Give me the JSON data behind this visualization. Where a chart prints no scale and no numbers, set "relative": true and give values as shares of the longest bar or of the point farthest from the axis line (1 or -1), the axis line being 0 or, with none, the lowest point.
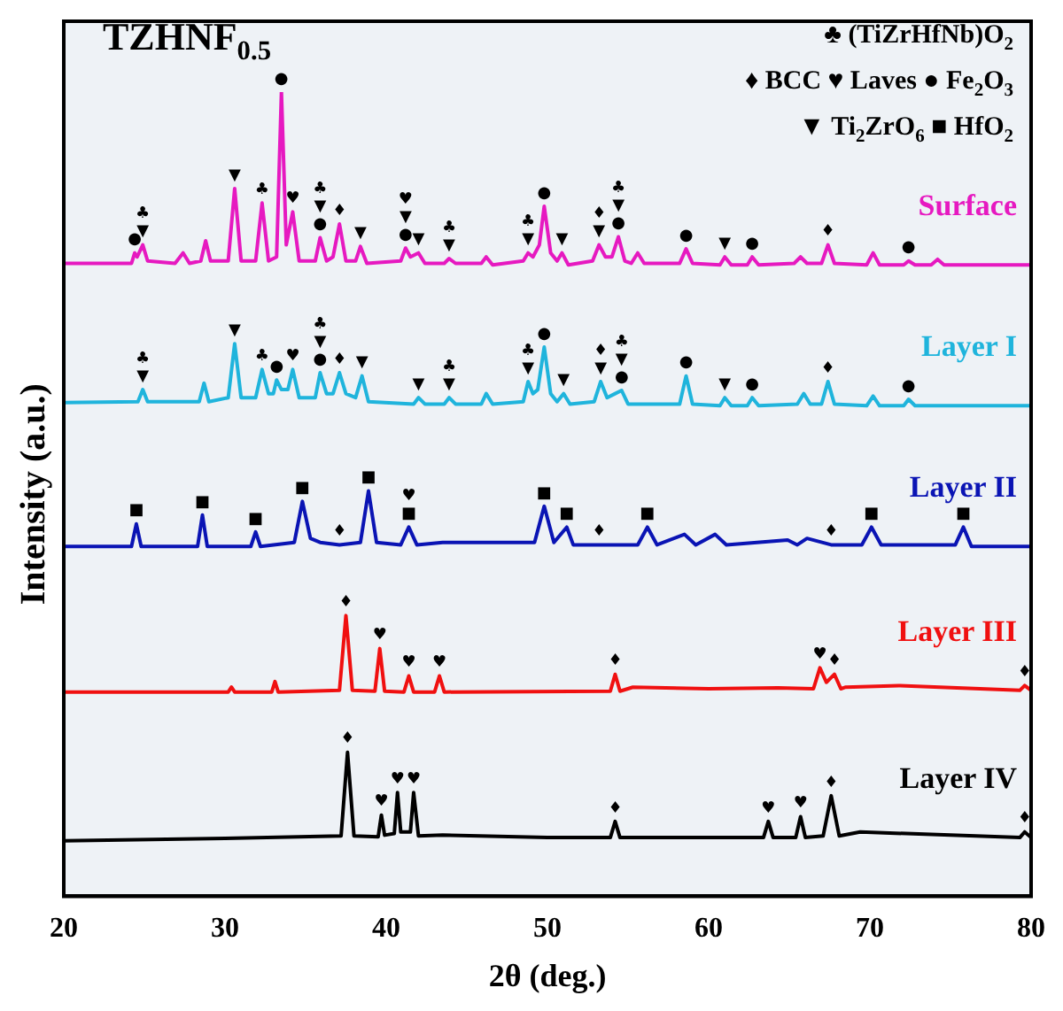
{
  "chart_data": {
    "type": "line",
    "title": "TZHNF$_{0.5}$",
    "xlabel": "2θ (deg.)",
    "ylabel": "Intensity (a.u.)",
    "relative": true,
    "xlim": [
      20,
      80
    ],
    "xticks": [
      20,
      30,
      40,
      50,
      60,
      70,
      80
    ],
    "marker": "none",
    "series": [
      {
        "name": "Surface",
        "color": "#e619c0",
        "x": [
          20,
          24.2,
          24.4,
          24.55,
          24.9,
          25.2,
          26.9,
          27.4,
          27.8,
          28.5,
          28.8,
          29.1,
          30.2,
          30.6,
          31.0,
          31.9,
          32.3,
          32.7,
          33.2,
          33.5,
          33.8,
          34.2,
          34.6,
          35.6,
          35.9,
          36.3,
          36.7,
          37.1,
          37.5,
          38.1,
          38.4,
          38.8,
          40.9,
          41.2,
          41.5,
          42.0,
          42.4,
          43.6,
          43.9,
          44.3,
          45.9,
          46.2,
          46.6,
          48.5,
          48.8,
          49.1,
          49.5,
          49.8,
          50.2,
          50.6,
          50.9,
          51.3,
          52.8,
          53.2,
          53.6,
          54.0,
          54.4,
          54.8,
          55.2,
          55.6,
          56.0,
          58.2,
          58.6,
          59.0,
          60.7,
          61.0,
          61.4,
          62.4,
          62.7,
          63.1,
          65.3,
          65.7,
          66.1,
          67.0,
          67.4,
          67.8,
          69.8,
          70.2,
          70.6,
          72.1,
          72.4,
          72.8,
          73.8,
          74.2,
          74.6,
          80
        ],
        "values": [
          0.787,
          0.787,
          0.8,
          0.795,
          0.81,
          0.79,
          0.787,
          0.8,
          0.787,
          0.79,
          0.815,
          0.79,
          0.79,
          0.88,
          0.79,
          0.79,
          0.862,
          0.79,
          0.795,
          1,
          0.81,
          0.851,
          0.79,
          0.79,
          0.819,
          0.79,
          0.795,
          0.836,
          0.79,
          0.79,
          0.808,
          0.787,
          0.79,
          0.806,
          0.795,
          0.8,
          0.787,
          0.787,
          0.793,
          0.787,
          0.787,
          0.795,
          0.785,
          0.79,
          0.8,
          0.795,
          0.81,
          0.858,
          0.8,
          0.79,
          0.8,
          0.785,
          0.79,
          0.81,
          0.795,
          0.795,
          0.82,
          0.79,
          0.787,
          0.8,
          0.787,
          0.787,
          0.805,
          0.787,
          0.785,
          0.795,
          0.785,
          0.785,
          0.795,
          0.785,
          0.787,
          0.795,
          0.787,
          0.787,
          0.81,
          0.787,
          0.785,
          0.8,
          0.785,
          0.785,
          0.79,
          0.785,
          0.785,
          0.792,
          0.785,
          0.785
        ]
      },
      {
        "name": "Layer I",
        "color": "#1fb4dc",
        "x": [
          20,
          24.6,
          24.9,
          25.2,
          28.4,
          28.7,
          29.0,
          30.2,
          30.6,
          31.0,
          31.9,
          32.3,
          32.7,
          33.0,
          33.2,
          33.5,
          33.9,
          34.2,
          34.6,
          35.6,
          35.9,
          36.3,
          36.7,
          37.1,
          37.5,
          38.1,
          38.5,
          38.9,
          41.7,
          42.0,
          42.4,
          43.6,
          43.9,
          44.3,
          45.9,
          46.2,
          46.6,
          48.5,
          48.8,
          49.1,
          49.4,
          49.8,
          50.2,
          50.6,
          51.0,
          51.4,
          52.9,
          53.3,
          53.7,
          54.2,
          54.6,
          55.0,
          58.2,
          58.6,
          59.0,
          60.7,
          61.0,
          61.4,
          62.4,
          62.7,
          63.1,
          65.5,
          65.9,
          66.3,
          67.0,
          67.4,
          67.8,
          69.8,
          70.2,
          70.6,
          72.1,
          72.4,
          72.8,
          80
        ],
        "values": [
          0.614,
          0.615,
          0.63,
          0.615,
          0.615,
          0.638,
          0.615,
          0.62,
          0.687,
          0.62,
          0.62,
          0.655,
          0.625,
          0.625,
          0.642,
          0.63,
          0.63,
          0.655,
          0.62,
          0.62,
          0.651,
          0.625,
          0.625,
          0.651,
          0.625,
          0.62,
          0.647,
          0.615,
          0.612,
          0.62,
          0.612,
          0.612,
          0.62,
          0.612,
          0.612,
          0.625,
          0.612,
          0.615,
          0.64,
          0.625,
          0.63,
          0.683,
          0.625,
          0.615,
          0.625,
          0.612,
          0.615,
          0.64,
          0.62,
          0.625,
          0.629,
          0.612,
          0.612,
          0.647,
          0.612,
          0.61,
          0.62,
          0.61,
          0.61,
          0.62,
          0.61,
          0.612,
          0.625,
          0.612,
          0.612,
          0.64,
          0.612,
          0.61,
          0.622,
          0.61,
          0.61,
          0.618,
          0.61,
          0.61
        ]
      },
      {
        "name": "Layer II",
        "color": "#0a14b4",
        "x": [
          20,
          24.2,
          24.5,
          24.8,
          28.3,
          28.6,
          28.9,
          31.6,
          31.9,
          32.2,
          34.3,
          34.8,
          35.3,
          35.9,
          37.1,
          38.4,
          38.9,
          39.4,
          40.9,
          41.4,
          41.9,
          43.5,
          46.0,
          49.2,
          49.8,
          50.4,
          51.2,
          51.6,
          53.2,
          55.6,
          56.2,
          56.8,
          58.5,
          59.2,
          60.4,
          61.1,
          64.9,
          65.5,
          66.1,
          67.6,
          69.5,
          70.1,
          70.7,
          75.3,
          75.8,
          76.3,
          80
        ],
        "values": [
          0.435,
          0.435,
          0.463,
          0.435,
          0.435,
          0.474,
          0.435,
          0.435,
          0.453,
          0.435,
          0.44,
          0.491,
          0.445,
          0.44,
          0.437,
          0.44,
          0.504,
          0.44,
          0.437,
          0.459,
          0.437,
          0.44,
          0.44,
          0.44,
          0.485,
          0.44,
          0.459,
          0.437,
          0.437,
          0.437,
          0.459,
          0.437,
          0.45,
          0.437,
          0.45,
          0.437,
          0.443,
          0.437,
          0.445,
          0.437,
          0.437,
          0.459,
          0.437,
          0.437,
          0.459,
          0.435,
          0.435
        ]
      },
      {
        "name": "Layer III",
        "color": "#f01010",
        "x": [
          20,
          30.2,
          30.4,
          30.6,
          32.9,
          33.1,
          33.3,
          37.1,
          37.5,
          37.9,
          39.3,
          39.6,
          39.9,
          41.1,
          41.4,
          41.7,
          43.0,
          43.3,
          43.6,
          53.9,
          54.2,
          54.5,
          55.3,
          60.0,
          64.3,
          66.5,
          66.9,
          67.3,
          67.8,
          68.2,
          68.5,
          71.8,
          79.3,
          79.6,
          80
        ],
        "values": [
          0.254,
          0.254,
          0.26,
          0.254,
          0.254,
          0.267,
          0.254,
          0.256,
          0.349,
          0.256,
          0.255,
          0.308,
          0.255,
          0.254,
          0.274,
          0.254,
          0.254,
          0.274,
          0.254,
          0.255,
          0.276,
          0.255,
          0.26,
          0.258,
          0.259,
          0.258,
          0.284,
          0.266,
          0.276,
          0.258,
          0.26,
          0.262,
          0.256,
          0.262,
          0.256
        ]
      },
      {
        "name": "Layer IV",
        "color": "#000000",
        "x": [
          20,
          30,
          37.2,
          37.6,
          38.0,
          39.5,
          39.7,
          39.9,
          40.5,
          40.7,
          40.9,
          41.5,
          41.7,
          42.0,
          43.5,
          50,
          53.9,
          54.2,
          54.5,
          63.4,
          63.7,
          64.0,
          65.4,
          65.7,
          66.0,
          67.1,
          67.6,
          68.1,
          69.4,
          79.3,
          79.6,
          80
        ],
        "values": [
          0.069,
          0.072,
          0.075,
          0.179,
          0.075,
          0.074,
          0.101,
          0.076,
          0.078,
          0.129,
          0.08,
          0.08,
          0.129,
          0.075,
          0.076,
          0.073,
          0.073,
          0.093,
          0.073,
          0.073,
          0.093,
          0.073,
          0.073,
          0.099,
          0.073,
          0.075,
          0.125,
          0.075,
          0.08,
          0.073,
          0.08,
          0.073
        ]
      }
    ],
    "annotations": [
      "♣ (TiZrHfNb)O$_{2}$",
      "♦ BCC ♥ Laves ● Fe$_{2}$O$_{3}$",
      "▼ Ti$_{2}$ZrO$_{6}$ ■ HfO$_{2}$",
      {
        "text": "●",
        "x": 24.4,
        "y": 0.8
      },
      {
        "text": "▼",
        "x": 24.9,
        "y": 0.81
      },
      {
        "text": "♣",
        "x": 24.9,
        "y": 0.81
      },
      {
        "text": "▼",
        "x": 30.6,
        "y": 0.88
      },
      {
        "text": "♣",
        "x": 32.3,
        "y": 0.862
      },
      {
        "text": "●",
        "x": 33.5,
        "y": 1
      },
      {
        "text": "♥",
        "x": 34.2,
        "y": 0.851
      },
      {
        "text": "●",
        "x": 35.9,
        "y": 0.819
      },
      {
        "text": "▼",
        "x": 35.9,
        "y": 0.819
      },
      {
        "text": "♣",
        "x": 35.9,
        "y": 0.819
      },
      {
        "text": "♦",
        "x": 37.1,
        "y": 0.836
      },
      {
        "text": "▼",
        "x": 38.4,
        "y": 0.808
      },
      {
        "text": "●",
        "x": 41.2,
        "y": 0.806
      },
      {
        "text": "▼",
        "x": 41.2,
        "y": 0.806
      },
      {
        "text": "♥",
        "x": 41.2,
        "y": 0.806
      },
      {
        "text": "▼",
        "x": 42.0,
        "y": 0.8
      },
      {
        "text": "▼",
        "x": 43.9,
        "y": 0.793
      },
      {
        "text": "♣",
        "x": 43.9,
        "y": 0.793
      },
      {
        "text": "▼",
        "x": 48.8,
        "y": 0.8
      },
      {
        "text": "♣",
        "x": 48.8,
        "y": 0.8
      },
      {
        "text": "●",
        "x": 49.8,
        "y": 0.858
      },
      {
        "text": "▼",
        "x": 50.9,
        "y": 0.8
      },
      {
        "text": "▼",
        "x": 53.2,
        "y": 0.81
      },
      {
        "text": "♦",
        "x": 53.2,
        "y": 0.81
      },
      {
        "text": "●",
        "x": 54.4,
        "y": 0.82
      },
      {
        "text": "▼",
        "x": 54.4,
        "y": 0.82
      },
      {
        "text": "♣",
        "x": 54.4,
        "y": 0.82
      },
      {
        "text": "●",
        "x": 58.6,
        "y": 0.805
      },
      {
        "text": "▼",
        "x": 61.0,
        "y": 0.795
      },
      {
        "text": "●",
        "x": 62.7,
        "y": 0.795
      },
      {
        "text": "♦",
        "x": 67.4,
        "y": 0.81
      },
      {
        "text": "●",
        "x": 72.4,
        "y": 0.79
      },
      {
        "text": "▼",
        "x": 24.9,
        "y": 0.63
      },
      {
        "text": "♣",
        "x": 24.9,
        "y": 0.63
      },
      {
        "text": "▼",
        "x": 30.6,
        "y": 0.687
      },
      {
        "text": "♣",
        "x": 32.3,
        "y": 0.655
      },
      {
        "text": "●",
        "x": 33.2,
        "y": 0.642
      },
      {
        "text": "♥",
        "x": 34.2,
        "y": 0.655
      },
      {
        "text": "●",
        "x": 35.9,
        "y": 0.651
      },
      {
        "text": "▼",
        "x": 35.9,
        "y": 0.651
      },
      {
        "text": "♣",
        "x": 35.9,
        "y": 0.651
      },
      {
        "text": "♦",
        "x": 37.1,
        "y": 0.651
      },
      {
        "text": "▼",
        "x": 38.5,
        "y": 0.647
      },
      {
        "text": "▼",
        "x": 42.0,
        "y": 0.62
      },
      {
        "text": "▼",
        "x": 43.9,
        "y": 0.62
      },
      {
        "text": "♣",
        "x": 43.9,
        "y": 0.62
      },
      {
        "text": "▼",
        "x": 48.8,
        "y": 0.64
      },
      {
        "text": "♣",
        "x": 48.8,
        "y": 0.64
      },
      {
        "text": "●",
        "x": 49.8,
        "y": 0.683
      },
      {
        "text": "▼",
        "x": 51.0,
        "y": 0.625
      },
      {
        "text": "▼",
        "x": 53.3,
        "y": 0.64
      },
      {
        "text": "♦",
        "x": 53.3,
        "y": 0.64
      },
      {
        "text": "●",
        "x": 54.6,
        "y": 0.629
      },
      {
        "text": "▼",
        "x": 54.6,
        "y": 0.629
      },
      {
        "text": "♣",
        "x": 54.6,
        "y": 0.629
      },
      {
        "text": "●",
        "x": 58.6,
        "y": 0.647
      },
      {
        "text": "▼",
        "x": 61.0,
        "y": 0.62
      },
      {
        "text": "●",
        "x": 62.7,
        "y": 0.62
      },
      {
        "text": "♦",
        "x": 67.4,
        "y": 0.64
      },
      {
        "text": "●",
        "x": 72.4,
        "y": 0.618
      },
      {
        "text": "■",
        "x": 24.5,
        "y": 0.463
      },
      {
        "text": "■",
        "x": 28.6,
        "y": 0.474
      },
      {
        "text": "■",
        "x": 31.9,
        "y": 0.453
      },
      {
        "text": "■",
        "x": 34.8,
        "y": 0.491
      },
      {
        "text": "♦",
        "x": 37.1,
        "y": 0.437
      },
      {
        "text": "■",
        "x": 38.9,
        "y": 0.504
      },
      {
        "text": "■",
        "x": 41.4,
        "y": 0.459
      },
      {
        "text": "♥",
        "x": 41.4,
        "y": 0.459
      },
      {
        "text": "■",
        "x": 49.8,
        "y": 0.485
      },
      {
        "text": "■",
        "x": 51.2,
        "y": 0.459
      },
      {
        "text": "♦",
        "x": 53.2,
        "y": 0.437
      },
      {
        "text": "■",
        "x": 56.2,
        "y": 0.459
      },
      {
        "text": "♦",
        "x": 67.6,
        "y": 0.437
      },
      {
        "text": "■",
        "x": 70.1,
        "y": 0.459
      },
      {
        "text": "■",
        "x": 75.8,
        "y": 0.459
      },
      {
        "text": "♦",
        "x": 37.5,
        "y": 0.349
      },
      {
        "text": "♥",
        "x": 39.6,
        "y": 0.308
      },
      {
        "text": "♥",
        "x": 41.4,
        "y": 0.274
      },
      {
        "text": "♥",
        "x": 43.3,
        "y": 0.274
      },
      {
        "text": "♦",
        "x": 54.2,
        "y": 0.276
      },
      {
        "text": "♥",
        "x": 66.9,
        "y": 0.284
      },
      {
        "text": "♦",
        "x": 67.8,
        "y": 0.276
      },
      {
        "text": "♦",
        "x": 79.6,
        "y": 0.262
      },
      {
        "text": "♦",
        "x": 37.6,
        "y": 0.179
      },
      {
        "text": "♥",
        "x": 39.7,
        "y": 0.101
      },
      {
        "text": "♥",
        "x": 40.7,
        "y": 0.129
      },
      {
        "text": "♥",
        "x": 41.7,
        "y": 0.129
      },
      {
        "text": "♦",
        "x": 54.2,
        "y": 0.093
      },
      {
        "text": "♥",
        "x": 63.7,
        "y": 0.093
      },
      {
        "text": "♥",
        "x": 65.7,
        "y": 0.099
      },
      {
        "text": "♦",
        "x": 67.6,
        "y": 0.125
      },
      {
        "text": "♦",
        "x": 79.6,
        "y": 0.08
      }
    ]
  }
}
